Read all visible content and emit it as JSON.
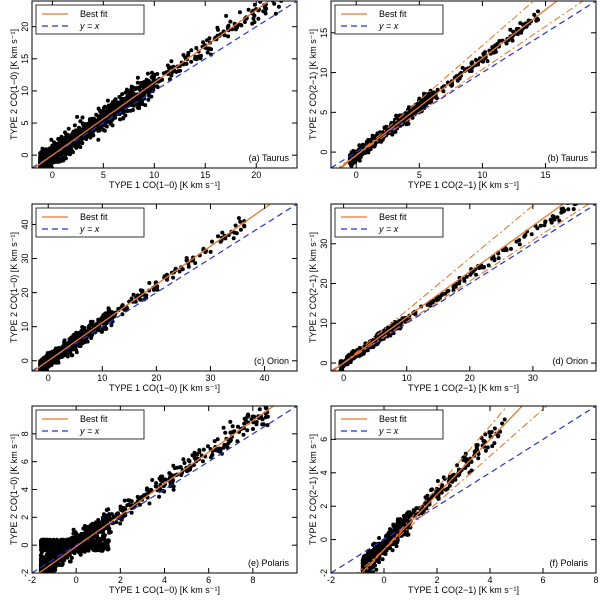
{
  "colors": {
    "fit": "#e8772e",
    "identity": "#2233cc",
    "points": "#000000",
    "axes": "#000000"
  },
  "legend": {
    "fit_label": "Best fit",
    "identity_label": "y = x"
  },
  "chart_data": [
    {
      "type": "scatter",
      "id": "a",
      "label": "(a) Taurus",
      "xlabel": "TYPE 1 CO(1−0) [K km s⁻¹]",
      "ylabel": "TYPE 2 CO(1−0) [K km s⁻¹]",
      "xlim": [
        -2,
        24
      ],
      "ylim": [
        -2,
        24
      ],
      "xticks": [
        0,
        5,
        10,
        15,
        20
      ],
      "yticks": [
        0,
        5,
        10,
        15,
        20
      ],
      "fit": {
        "slope": 1.13,
        "intercept": 0.0
      },
      "fit_band": null,
      "cloud": {
        "xmin": -1.2,
        "xmax": 22.5,
        "slope": 1.13,
        "intercept": 0.0,
        "scatter": 0.9,
        "count": 1100,
        "dense_below": 10,
        "seed": 11
      }
    },
    {
      "type": "scatter",
      "id": "b",
      "label": "(b) Taurus",
      "xlabel": "TYPE 1 CO(2−1) [K km s⁻¹]",
      "ylabel": "TYPE 2 CO(2−1) [K km s⁻¹]",
      "xlim": [
        -2,
        19
      ],
      "ylim": [
        -2,
        19
      ],
      "xticks": [
        0,
        5,
        10,
        15
      ],
      "yticks": [
        0,
        5,
        10,
        15
      ],
      "fit": {
        "slope": 1.22,
        "intercept": -0.4
      },
      "fit_band": {
        "upper_slope": 1.38,
        "lower_slope": 1.08
      },
      "cloud": {
        "xmin": -0.5,
        "xmax": 14.5,
        "slope": 1.22,
        "intercept": -0.4,
        "scatter": 0.35,
        "count": 900,
        "dense_below": 6,
        "seed": 23
      }
    },
    {
      "type": "scatter",
      "id": "c",
      "label": "(c) Orion",
      "xlabel": "TYPE 1 CO(1−0) [K km s⁻¹]",
      "ylabel": "TYPE 2 CO(1−0) [K km s⁻¹]",
      "xlim": [
        -3,
        46
      ],
      "ylim": [
        -3,
        46
      ],
      "xticks": [
        0,
        10,
        20,
        30,
        40
      ],
      "yticks": [
        0,
        10,
        20,
        30,
        40
      ],
      "fit": {
        "slope": 1.12,
        "intercept": 0.0
      },
      "fit_band": null,
      "cloud": {
        "xmin": -1.5,
        "xmax": 37,
        "slope": 1.12,
        "intercept": 0.0,
        "scatter": 1.2,
        "count": 650,
        "dense_below": 12,
        "seed": 37
      }
    },
    {
      "type": "scatter",
      "id": "d",
      "label": "(d) Orion",
      "xlabel": "TYPE 1 CO(2−1) [K km s⁻¹]",
      "ylabel": "TYPE 2 CO(2−1) [K km s⁻¹]",
      "xlim": [
        -2,
        40
      ],
      "ylim": [
        -2,
        40
      ],
      "xticks": [
        0,
        10,
        20,
        30
      ],
      "yticks": [
        0,
        10,
        20,
        30
      ],
      "fit": {
        "slope": 1.15,
        "intercept": 0.0
      },
      "fit_band": {
        "upper_slope": 1.32,
        "lower_slope": 1.03
      },
      "cloud": {
        "xmin": -0.5,
        "xmax": 38,
        "slope": 1.1,
        "intercept": 0.0,
        "scatter": 0.6,
        "count": 500,
        "dense_below": 10,
        "seed": 41
      }
    },
    {
      "type": "scatter",
      "id": "e",
      "label": "(e) Polaris",
      "xlabel": "TYPE 1 CO(1−0) [K km s⁻¹]",
      "ylabel": "TYPE 2 CO(1−0) [K km s⁻¹]",
      "xlim": [
        -2,
        10
      ],
      "ylim": [
        -2,
        10
      ],
      "xticks": [
        -2,
        0,
        2,
        4,
        6,
        8
      ],
      "yticks": [
        -2,
        0,
        2,
        4,
        6,
        8
      ],
      "fit": {
        "slope": 1.13,
        "intercept": -0.1
      },
      "fit_band": null,
      "cloud": {
        "xmin": -1.6,
        "xmax": 8.8,
        "slope": 1.1,
        "intercept": 0.1,
        "scatter": 0.45,
        "count": 1300,
        "dense_below": 1.5,
        "seed": 53
      }
    },
    {
      "type": "scatter",
      "id": "f",
      "label": "(f) Polaris",
      "xlabel": "TYPE 1 CO(2−1) [K km s⁻¹]",
      "ylabel": "TYPE 2 CO(2−1) [K km s⁻¹]",
      "xlim": [
        -2,
        8
      ],
      "ylim": [
        -2,
        8
      ],
      "xticks": [
        -2,
        0,
        2,
        4,
        6,
        8
      ],
      "yticks": [
        -2,
        0,
        2,
        4,
        6
      ],
      "fit": {
        "slope": 1.65,
        "intercept": -0.6
      },
      "fit_band": {
        "upper_slope": 1.85,
        "lower_slope": 1.4
      },
      "cloud": {
        "xmin": -0.8,
        "xmax": 4.6,
        "slope": 1.6,
        "intercept": -0.4,
        "scatter": 0.3,
        "count": 900,
        "dense_below": 1.0,
        "seed": 67
      }
    }
  ]
}
